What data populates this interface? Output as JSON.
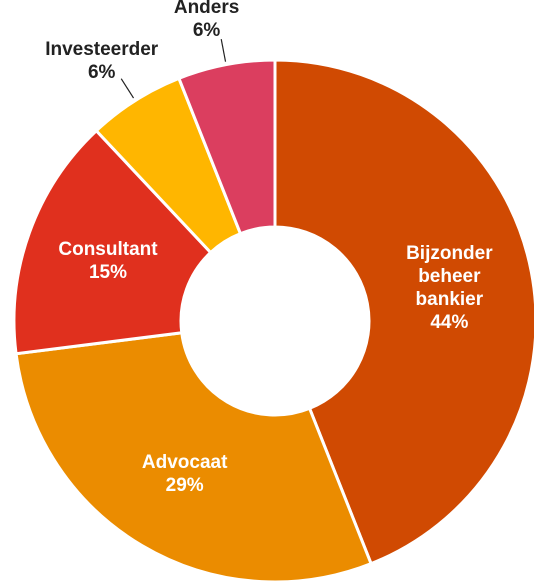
{
  "chart_data": {
    "type": "donut",
    "categories": [
      "Bijzonder beheer bankier",
      "Advocaat",
      "Consultant",
      "Investeerder",
      "Anders"
    ],
    "values": [
      44,
      29,
      15,
      6,
      6
    ],
    "value_labels": [
      "44%",
      "29%",
      "15%",
      "6%",
      "6%"
    ],
    "colors": [
      "#d04a02",
      "#eb8c00",
      "#e0301e",
      "#ffb600",
      "#db3e5f"
    ]
  }
}
